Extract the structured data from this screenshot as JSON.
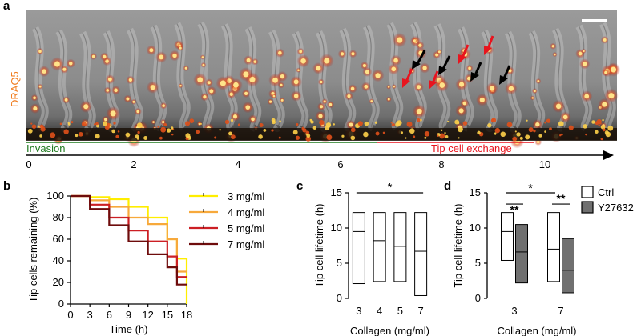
{
  "figure": {
    "panel_a": {
      "letter": "a",
      "stain_label": "DRAQ5",
      "phase_invasion": "Invasion",
      "phase_exchange": "Tip cell exchange",
      "timeline_ticks": [
        "0",
        "2",
        "4",
        "6",
        "8",
        "10"
      ],
      "colors": {
        "invasion": "#1f7a1f",
        "exchange": "#e8141e",
        "stain": "#f07c1e"
      }
    },
    "panel_b": {
      "letter": "b"
    },
    "panel_c": {
      "letter": "c"
    },
    "panel_d": {
      "letter": "d"
    }
  },
  "chart_data": [
    {
      "type": "line",
      "step": true,
      "ylabel": "Tip cells remaining (%)",
      "xlabel": "Time (h)",
      "xlim": [
        0,
        18
      ],
      "ylim": [
        0,
        100
      ],
      "xticks": [
        0,
        3,
        6,
        9,
        12,
        15,
        18
      ],
      "yticks": [
        0,
        20,
        40,
        60,
        80,
        100
      ],
      "legend_position": "right",
      "series": [
        {
          "name": "3 mg/ml",
          "color": "#ffee00",
          "x": [
            0,
            3,
            6,
            9,
            12,
            15,
            16.5,
            18
          ],
          "values": [
            100,
            99,
            97,
            90,
            80,
            60,
            42,
            0
          ]
        },
        {
          "name": "4 mg/ml",
          "color": "#f7a93b",
          "x": [
            0,
            3,
            6,
            9,
            12,
            15,
            16.5,
            18
          ],
          "values": [
            100,
            96,
            90,
            80,
            74,
            60,
            30,
            30
          ]
        },
        {
          "name": "5 mg/ml",
          "color": "#cc1f24",
          "x": [
            0,
            3,
            6,
            9,
            12,
            15,
            16.5,
            18
          ],
          "values": [
            100,
            92,
            80,
            68,
            58,
            44,
            25,
            25
          ]
        },
        {
          "name": "7 mg/ml",
          "color": "#6e0c0c",
          "x": [
            0,
            3,
            6,
            9,
            12,
            15,
            16.5,
            18
          ],
          "values": [
            100,
            88,
            73,
            58,
            46,
            34,
            18,
            18
          ]
        }
      ]
    },
    {
      "type": "bar",
      "style": "floating box (min, mean, max)",
      "ylabel": "Tip cell lifetime (h)",
      "xlabel": "Collagen (mg/ml)",
      "categories": [
        "3",
        "4",
        "5",
        "7"
      ],
      "ylim": [
        0,
        15
      ],
      "yticks": [
        0,
        5,
        10,
        15
      ],
      "boxes": [
        {
          "min": 2.1,
          "mean": 9.5,
          "max": 12.2
        },
        {
          "min": 2.4,
          "mean": 8.2,
          "max": 12.2
        },
        {
          "min": 2.4,
          "mean": 7.4,
          "max": 12.2
        },
        {
          "min": 0.4,
          "mean": 6.7,
          "max": 12.2
        }
      ],
      "annotations": [
        {
          "from": "3",
          "to": "7",
          "label": "*"
        }
      ]
    },
    {
      "type": "bar",
      "style": "floating box (min, mean, max)",
      "ylabel": "Tip cell lifetime (h)",
      "xlabel": "Collagen (mg/ml)",
      "categories": [
        "3",
        "7"
      ],
      "ylim": [
        0,
        15
      ],
      "yticks": [
        0,
        5,
        10,
        15
      ],
      "legend_position": "top-right",
      "series": [
        {
          "name": "Ctrl",
          "color": "#ffffff",
          "boxes": [
            {
              "min": 5.4,
              "mean": 9.5,
              "max": 12.2
            },
            {
              "min": 2.4,
              "mean": 7.0,
              "max": 12.2
            }
          ]
        },
        {
          "name": "Y27632",
          "color": "#707070",
          "boxes": [
            {
              "min": 2.2,
              "mean": 6.6,
              "max": 10.5
            },
            {
              "min": 0.8,
              "mean": 4.0,
              "max": 8.5
            }
          ]
        }
      ],
      "annotations": [
        {
          "label": "**",
          "between": "3 Ctrl vs 3 Y27632"
        },
        {
          "label": "*",
          "between": "3 Ctrl vs 7 Ctrl"
        },
        {
          "label": "**",
          "between": "7 Ctrl vs 7 Y27632"
        }
      ]
    }
  ]
}
